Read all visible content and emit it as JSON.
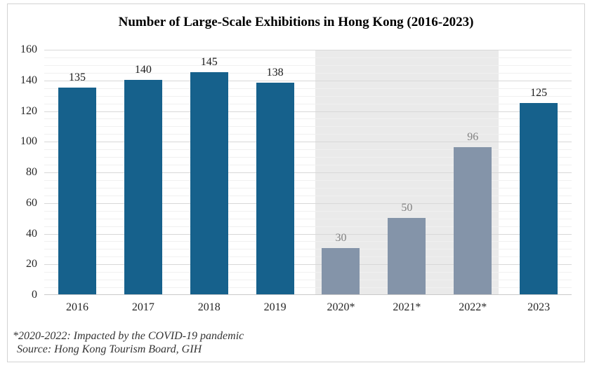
{
  "chart_data": {
    "type": "bar",
    "title": "Number of Large-Scale Exhibitions in Hong Kong (2016-2023)",
    "categories": [
      "2016",
      "2017",
      "2018",
      "2019",
      "2020*",
      "2021*",
      "2022*",
      "2023"
    ],
    "values": [
      135,
      140,
      145,
      138,
      30,
      50,
      96,
      125
    ],
    "xlabel": "",
    "ylabel": "",
    "ylim": [
      0,
      160
    ],
    "ytick_step": 20,
    "minor_gridline_step": 5,
    "grid": true,
    "legend": false,
    "annotations": [
      "*2020-2022: Impacted by the COVID-19 pandemic",
      "Source: Hong Kong Tourism Board, GIH"
    ],
    "colors": {
      "bar_default": "#16618C",
      "bar_covid": "#8494A9",
      "value_label_default": "#1A1A1A",
      "value_label_covid": "#808080",
      "shaded_band": "#EAEAEA"
    },
    "covid_indices": [
      4,
      5,
      6
    ],
    "shaded_band": {
      "from_index": 4,
      "to_index": 6
    }
  }
}
